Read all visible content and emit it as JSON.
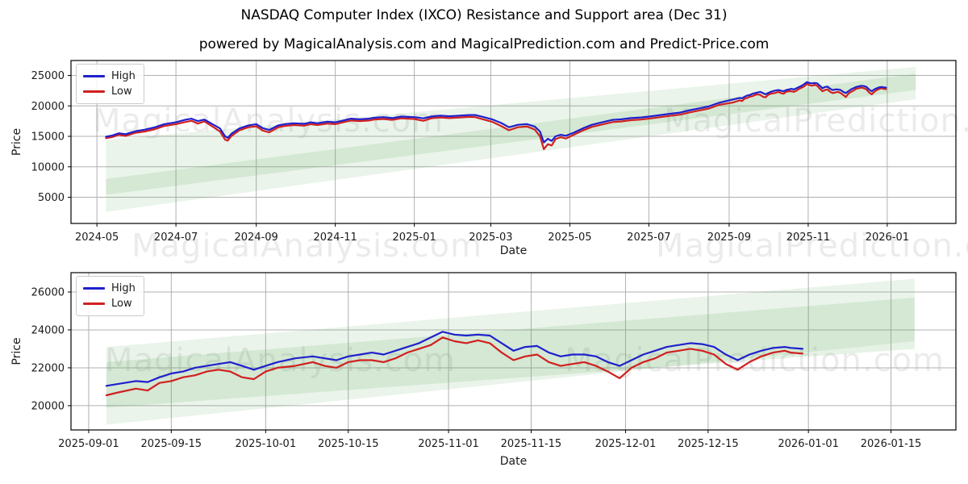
{
  "title": "NASDAQ Computer Index (IXCO) Resistance and Support area (Dec 31)",
  "subtitle": "powered by MagicalAnalysis.com and MagicalPrediction.com and Predict-Price.com",
  "watermarks": {
    "analysis": "MagicalAnalysis.com",
    "prediction": "MagicalPrediction.com"
  },
  "legend": {
    "high": "High",
    "low": "Low"
  },
  "colors": {
    "high": "#2020cc",
    "low": "#d02020",
    "band": "#5aa95a",
    "grid": "#b0b0b0",
    "spine": "#000000",
    "text": "#1a1a1a",
    "watermark": "rgba(0,0,0,0.08)"
  },
  "chart_data": [
    {
      "type": "line",
      "title": "",
      "xlabel": "Date",
      "ylabel": "Price",
      "grid": true,
      "legend_position": "upper left",
      "x_unit": "days since 2024-05-01",
      "xlim": [
        -20,
        663
      ],
      "ylim": [
        700,
        27450
      ],
      "x_ticks": [
        {
          "pos": 0,
          "label": "2024-05"
        },
        {
          "pos": 61,
          "label": "2024-07"
        },
        {
          "pos": 123,
          "label": "2024-09"
        },
        {
          "pos": 184,
          "label": "2024-11"
        },
        {
          "pos": 245,
          "label": "2025-01"
        },
        {
          "pos": 304,
          "label": "2025-03"
        },
        {
          "pos": 365,
          "label": "2025-05"
        },
        {
          "pos": 426,
          "label": "2025-07"
        },
        {
          "pos": 488,
          "label": "2025-09"
        },
        {
          "pos": 549,
          "label": "2025-11"
        },
        {
          "pos": 610,
          "label": "2026-01"
        }
      ],
      "y_ticks": [
        {
          "pos": 5000,
          "label": "5000"
        },
        {
          "pos": 10000,
          "label": "10000"
        },
        {
          "pos": 15000,
          "label": "15000"
        },
        {
          "pos": 20000,
          "label": "20000"
        },
        {
          "pos": 25000,
          "label": "25000"
        }
      ],
      "bands": [
        {
          "name": "support-resistance-outer",
          "x": [
            7,
            632
          ],
          "bottom": [
            2600,
            21100
          ],
          "top": [
            14400,
            26400
          ],
          "opacity": 0.13
        },
        {
          "name": "support-resistance-inner",
          "x": [
            7,
            632
          ],
          "bottom": [
            5400,
            22600
          ],
          "top": [
            8000,
            25300
          ],
          "opacity": 0.15
        }
      ],
      "series_names": [
        "High",
        "Low"
      ],
      "points_dhl": [
        [
          7,
          14950,
          14700
        ],
        [
          12,
          15150,
          14900
        ],
        [
          17,
          15500,
          15250
        ],
        [
          22,
          15350,
          15050
        ],
        [
          30,
          15850,
          15600
        ],
        [
          37,
          16100,
          15800
        ],
        [
          45,
          16500,
          16200
        ],
        [
          52,
          17000,
          16700
        ],
        [
          61,
          17300,
          17000
        ],
        [
          68,
          17700,
          17350
        ],
        [
          73,
          17900,
          17550
        ],
        [
          78,
          17500,
          17100
        ],
        [
          83,
          17750,
          17450
        ],
        [
          90,
          16900,
          16500
        ],
        [
          95,
          16300,
          15800
        ],
        [
          99,
          15000,
          14450
        ],
        [
          101,
          14750,
          14300
        ],
        [
          104,
          15450,
          15100
        ],
        [
          110,
          16300,
          16000
        ],
        [
          117,
          16800,
          16500
        ],
        [
          123,
          17000,
          16650
        ],
        [
          128,
          16350,
          15950
        ],
        [
          133,
          16050,
          15650
        ],
        [
          140,
          16800,
          16500
        ],
        [
          145,
          17000,
          16700
        ],
        [
          152,
          17150,
          16850
        ],
        [
          160,
          17050,
          16750
        ],
        [
          165,
          17300,
          17000
        ],
        [
          170,
          17150,
          16850
        ],
        [
          178,
          17400,
          17100
        ],
        [
          184,
          17300,
          17000
        ],
        [
          190,
          17600,
          17300
        ],
        [
          196,
          17900,
          17600
        ],
        [
          203,
          17800,
          17500
        ],
        [
          210,
          17900,
          17600
        ],
        [
          214,
          18050,
          17750
        ],
        [
          221,
          18150,
          17850
        ],
        [
          228,
          18000,
          17700
        ],
        [
          235,
          18250,
          17950
        ],
        [
          245,
          18150,
          17850
        ],
        [
          252,
          17950,
          17550
        ],
        [
          258,
          18250,
          17950
        ],
        [
          265,
          18400,
          18100
        ],
        [
          272,
          18300,
          18000
        ],
        [
          280,
          18400,
          18100
        ],
        [
          287,
          18500,
          18200
        ],
        [
          292,
          18500,
          18150
        ],
        [
          298,
          18200,
          17800
        ],
        [
          305,
          17800,
          17400
        ],
        [
          312,
          17200,
          16700
        ],
        [
          318,
          16500,
          16000
        ],
        [
          325,
          16900,
          16500
        ],
        [
          332,
          17000,
          16600
        ],
        [
          338,
          16600,
          16100
        ],
        [
          342,
          15800,
          15000
        ],
        [
          345,
          14000,
          12900
        ],
        [
          348,
          14600,
          13700
        ],
        [
          351,
          14250,
          13500
        ],
        [
          354,
          15000,
          14550
        ],
        [
          358,
          15250,
          14850
        ],
        [
          362,
          15100,
          14650
        ],
        [
          368,
          15600,
          15250
        ],
        [
          375,
          16300,
          15950
        ],
        [
          382,
          16900,
          16550
        ],
        [
          390,
          17300,
          16950
        ],
        [
          398,
          17700,
          17350
        ],
        [
          405,
          17800,
          17450
        ],
        [
          412,
          18000,
          17650
        ],
        [
          420,
          18100,
          17750
        ],
        [
          428,
          18300,
          17950
        ],
        [
          435,
          18500,
          18150
        ],
        [
          442,
          18700,
          18350
        ],
        [
          450,
          18900,
          18550
        ],
        [
          458,
          19300,
          18950
        ],
        [
          465,
          19600,
          19250
        ],
        [
          472,
          19900,
          19550
        ],
        [
          480,
          20500,
          20150
        ],
        [
          491,
          21050,
          20550
        ],
        [
          493,
          21150,
          20700
        ],
        [
          496,
          21300,
          20900
        ],
        [
          498,
          21250,
          20800
        ],
        [
          500,
          21500,
          21200
        ],
        [
          502,
          21700,
          21300
        ],
        [
          504,
          21800,
          21500
        ],
        [
          506,
          22000,
          21600
        ],
        [
          508,
          22100,
          21800
        ],
        [
          510,
          22200,
          21900
        ],
        [
          512,
          22300,
          21800
        ],
        [
          514,
          22100,
          21500
        ],
        [
          516,
          21900,
          21400
        ],
        [
          518,
          22100,
          21800
        ],
        [
          520,
          22300,
          22000
        ],
        [
          523,
          22500,
          22100
        ],
        [
          526,
          22600,
          22300
        ],
        [
          528,
          22500,
          22100
        ],
        [
          530,
          22400,
          22000
        ],
        [
          532,
          22600,
          22300
        ],
        [
          534,
          22700,
          22400
        ],
        [
          536,
          22800,
          22400
        ],
        [
          538,
          22700,
          22300
        ],
        [
          540,
          22900,
          22500
        ],
        [
          542,
          23100,
          22800
        ],
        [
          544,
          23300,
          23000
        ],
        [
          546,
          23600,
          23200
        ],
        [
          548,
          23900,
          23600
        ],
        [
          550,
          23750,
          23400
        ],
        [
          552,
          23700,
          23300
        ],
        [
          554,
          23750,
          23450
        ],
        [
          556,
          23700,
          23300
        ],
        [
          558,
          23300,
          22800
        ],
        [
          560,
          22900,
          22400
        ],
        [
          562,
          23100,
          22600
        ],
        [
          564,
          23150,
          22700
        ],
        [
          566,
          22800,
          22300
        ],
        [
          568,
          22600,
          22100
        ],
        [
          570,
          22700,
          22200
        ],
        [
          572,
          22700,
          22300
        ],
        [
          574,
          22600,
          22100
        ],
        [
          576,
          22300,
          21800
        ],
        [
          578,
          22100,
          21450
        ],
        [
          580,
          22400,
          22000
        ],
        [
          582,
          22700,
          22300
        ],
        [
          584,
          22900,
          22500
        ],
        [
          586,
          23100,
          22800
        ],
        [
          588,
          23200,
          22900
        ],
        [
          590,
          23300,
          23000
        ],
        [
          592,
          23250,
          22900
        ],
        [
          594,
          23100,
          22700
        ],
        [
          596,
          22700,
          22200
        ],
        [
          598,
          22400,
          21900
        ],
        [
          600,
          22700,
          22300
        ],
        [
          602,
          22900,
          22600
        ],
        [
          604,
          23050,
          22800
        ],
        [
          606,
          23100,
          22900
        ],
        [
          607,
          23050,
          22800
        ],
        [
          609,
          23000,
          22750
        ]
      ]
    },
    {
      "type": "line",
      "title": "",
      "xlabel": "Date",
      "ylabel": "Price",
      "grid": true,
      "legend_position": "upper left",
      "x_unit": "days since 2025-09-01",
      "xlim": [
        -3,
        147
      ],
      "ylim": [
        18720,
        27020
      ],
      "x_ticks": [
        {
          "pos": 0,
          "label": "2025-09-01"
        },
        {
          "pos": 14,
          "label": "2025-09-15"
        },
        {
          "pos": 30,
          "label": "2025-10-01"
        },
        {
          "pos": 44,
          "label": "2025-10-15"
        },
        {
          "pos": 61,
          "label": "2025-11-01"
        },
        {
          "pos": 75,
          "label": "2025-11-15"
        },
        {
          "pos": 91,
          "label": "2025-12-01"
        },
        {
          "pos": 105,
          "label": "2025-12-15"
        },
        {
          "pos": 122,
          "label": "2026-01-01"
        },
        {
          "pos": 136,
          "label": "2026-01-15"
        }
      ],
      "y_ticks": [
        {
          "pos": 20000,
          "label": "20000"
        },
        {
          "pos": 22000,
          "label": "22000"
        },
        {
          "pos": 24000,
          "label": "24000"
        },
        {
          "pos": 26000,
          "label": "26000"
        }
      ],
      "bands": [
        {
          "name": "support-resistance-outer",
          "x": [
            3,
            140
          ],
          "bottom": [
            19000,
            23400
          ],
          "top": [
            23100,
            26700
          ],
          "opacity": 0.13
        },
        {
          "name": "support-resistance-inner",
          "x": [
            3,
            140
          ],
          "bottom": [
            19900,
            23000
          ],
          "top": [
            22300,
            25700
          ],
          "opacity": 0.15
        }
      ],
      "series_names": [
        "High",
        "Low"
      ],
      "points_dhl": [
        [
          3,
          21050,
          20550
        ],
        [
          5,
          21150,
          20700
        ],
        [
          8,
          21300,
          20900
        ],
        [
          10,
          21250,
          20800
        ],
        [
          12,
          21500,
          21200
        ],
        [
          14,
          21700,
          21300
        ],
        [
          16,
          21800,
          21500
        ],
        [
          18,
          22000,
          21600
        ],
        [
          20,
          22100,
          21800
        ],
        [
          22,
          22200,
          21900
        ],
        [
          24,
          22300,
          21800
        ],
        [
          26,
          22100,
          21500
        ],
        [
          28,
          21900,
          21400
        ],
        [
          30,
          22100,
          21800
        ],
        [
          32,
          22300,
          22000
        ],
        [
          35,
          22500,
          22100
        ],
        [
          38,
          22600,
          22300
        ],
        [
          40,
          22500,
          22100
        ],
        [
          42,
          22400,
          22000
        ],
        [
          44,
          22600,
          22300
        ],
        [
          46,
          22700,
          22400
        ],
        [
          48,
          22800,
          22400
        ],
        [
          50,
          22700,
          22300
        ],
        [
          52,
          22900,
          22500
        ],
        [
          54,
          23100,
          22800
        ],
        [
          56,
          23300,
          23000
        ],
        [
          58,
          23600,
          23200
        ],
        [
          60,
          23900,
          23600
        ],
        [
          62,
          23750,
          23400
        ],
        [
          64,
          23700,
          23300
        ],
        [
          66,
          23750,
          23450
        ],
        [
          68,
          23700,
          23300
        ],
        [
          70,
          23300,
          22800
        ],
        [
          72,
          22900,
          22400
        ],
        [
          74,
          23100,
          22600
        ],
        [
          76,
          23150,
          22700
        ],
        [
          78,
          22800,
          22300
        ],
        [
          80,
          22600,
          22100
        ],
        [
          82,
          22700,
          22200
        ],
        [
          84,
          22700,
          22300
        ],
        [
          86,
          22600,
          22100
        ],
        [
          88,
          22300,
          21800
        ],
        [
          90,
          22100,
          21450
        ],
        [
          92,
          22400,
          22000
        ],
        [
          94,
          22700,
          22300
        ],
        [
          96,
          22900,
          22500
        ],
        [
          98,
          23100,
          22800
        ],
        [
          100,
          23200,
          22900
        ],
        [
          102,
          23300,
          23000
        ],
        [
          104,
          23250,
          22900
        ],
        [
          106,
          23100,
          22700
        ],
        [
          108,
          22700,
          22200
        ],
        [
          110,
          22400,
          21900
        ],
        [
          112,
          22700,
          22300
        ],
        [
          114,
          22900,
          22600
        ],
        [
          116,
          23050,
          22800
        ],
        [
          118,
          23100,
          22900
        ],
        [
          119,
          23050,
          22800
        ],
        [
          121,
          23000,
          22750
        ]
      ]
    }
  ]
}
